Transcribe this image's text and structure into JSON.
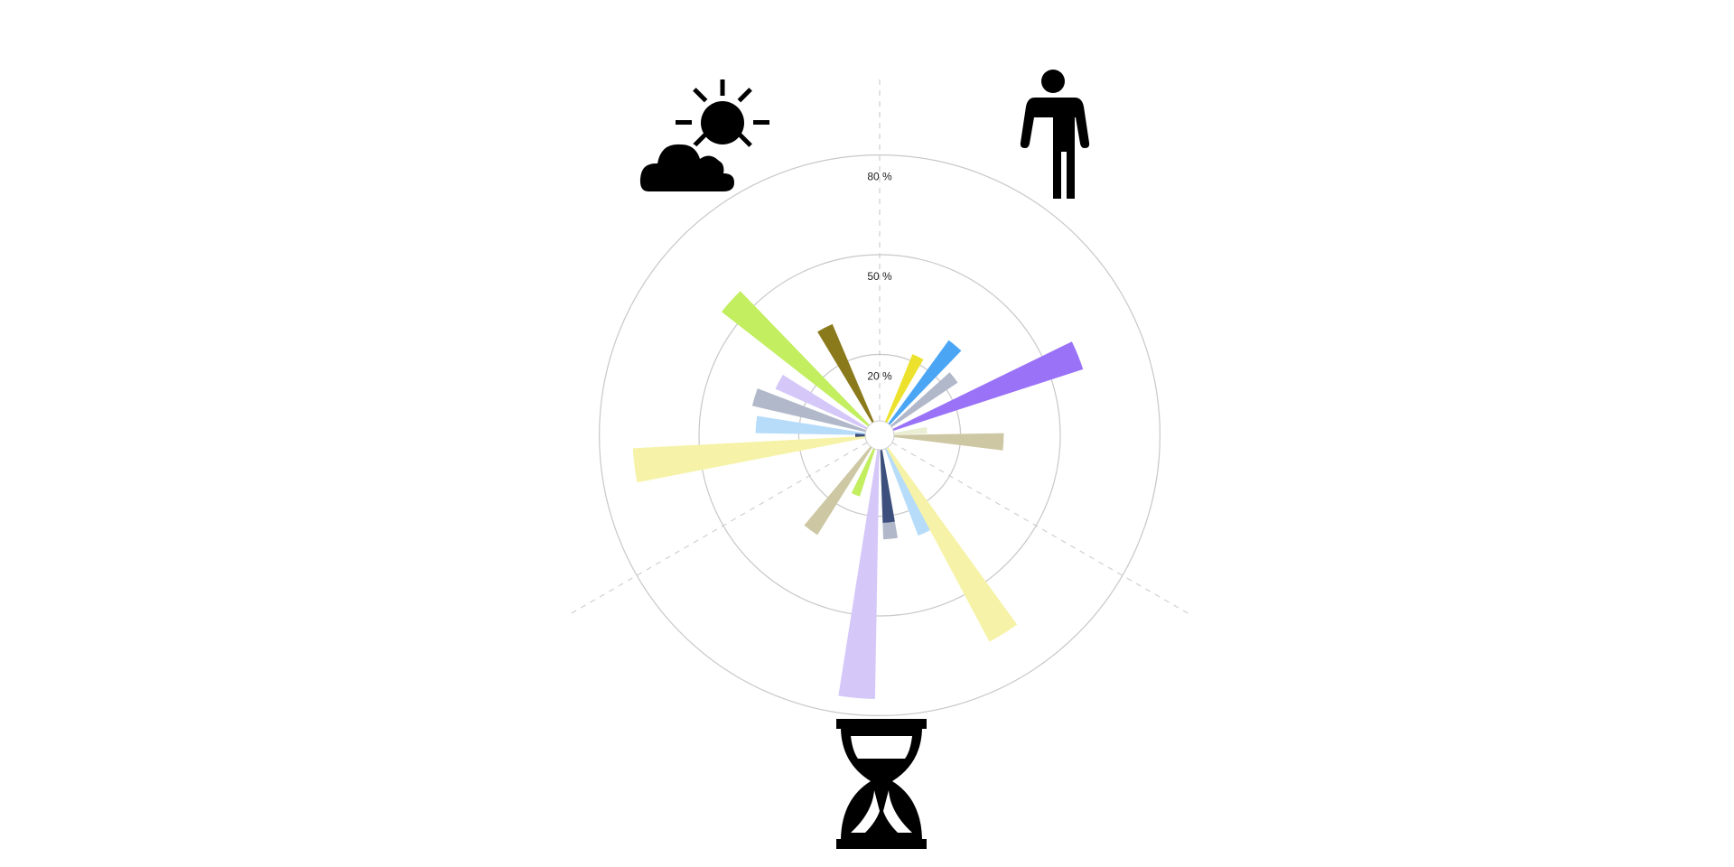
{
  "chart_data": {
    "type": "polar-bar",
    "title": "",
    "radial_axis": {
      "min": 0,
      "max": 100,
      "ticks": [
        20,
        50,
        80
      ],
      "tick_labels": [
        "20 %",
        "50 %",
        "80 %"
      ],
      "unit": "%"
    },
    "grid": true,
    "sections": [
      {
        "icon": "weather-icon",
        "angle_range_deg": [
          240,
          360
        ]
      },
      {
        "icon": "person-icon",
        "angle_range_deg": [
          0,
          120
        ]
      },
      {
        "icon": "hourglass-icon",
        "angle_range_deg": [
          120,
          240
        ]
      }
    ],
    "bars": [
      {
        "angle": 26,
        "width": 8,
        "value": 22,
        "color": "#ece22e"
      },
      {
        "angle": 40,
        "width": 8,
        "value": 31,
        "color": "#4aa6f5"
      },
      {
        "angle": 52,
        "width": 8,
        "value": 24,
        "color": "#b1b8ca"
      },
      {
        "angle": 68,
        "width": 8,
        "value": 60,
        "color": "#9a72f7"
      },
      {
        "angle": 84,
        "width": 8,
        "value": 10,
        "color": "#eaeed2"
      },
      {
        "angle": 93,
        "width": 8,
        "value": 33,
        "color": "#cdc8a3"
      },
      {
        "angle": 155,
        "width": 8,
        "value": 28,
        "color": "#b7dcfa"
      },
      {
        "angle": 148,
        "width": 8,
        "value": 66,
        "color": "#f6f3a8"
      },
      {
        "angle": 174,
        "width": 8,
        "value": 27,
        "color": "#b1b8ca"
      },
      {
        "angle": 174,
        "width": 8,
        "value": 22,
        "color": "#3d4f7c"
      },
      {
        "angle": 185,
        "width": 8,
        "value": 75,
        "color": "#d5c8f9"
      },
      {
        "angle": 202,
        "width": 8,
        "value": 15,
        "color": "#c2ee60"
      },
      {
        "angle": 216,
        "width": 8,
        "value": 31,
        "color": "#cdc8a3"
      },
      {
        "angle": 263,
        "width": 8,
        "value": 70,
        "color": "#f6f3a8"
      },
      {
        "angle": 275,
        "width": 8,
        "value": 33,
        "color": "#b7dcfa"
      },
      {
        "angle": 287,
        "width": 8,
        "value": 35,
        "color": "#b1b8ca"
      },
      {
        "angle": 298,
        "width": 8,
        "value": 30,
        "color": "#d5c8f9"
      },
      {
        "angle": 312,
        "width": 8,
        "value": 56,
        "color": "#c2ee60"
      },
      {
        "angle": 333,
        "width": 8,
        "value": 32,
        "color": "#8a7a1c"
      },
      {
        "angle": 270,
        "width": 8,
        "value": 3,
        "color": "#3d4f7c"
      }
    ]
  }
}
